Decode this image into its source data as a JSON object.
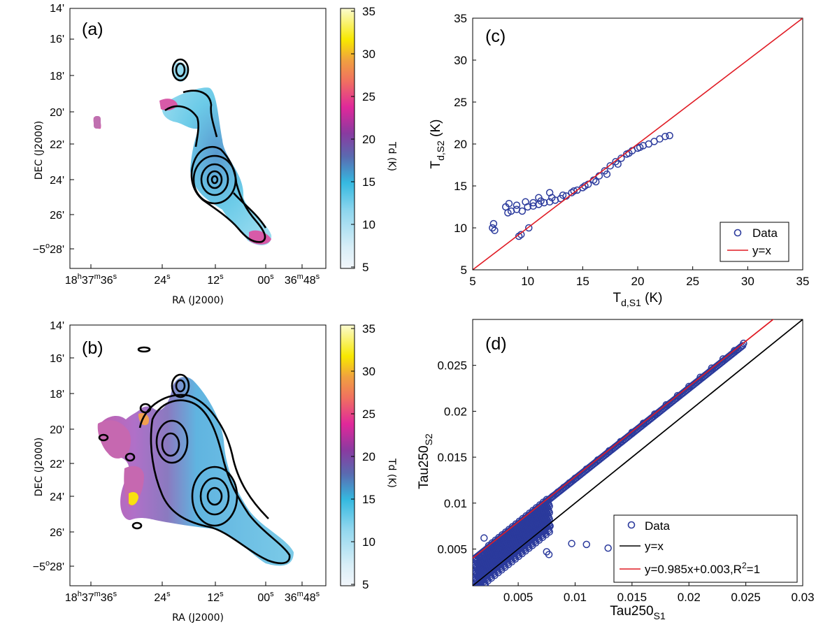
{
  "colors": {
    "data_marker": "#2b3a9c",
    "fit_line": "#e01b24",
    "identity_line": "#000000",
    "temp_scale": [
      "#f2f6fb",
      "#a6e0f0",
      "#35b9e0",
      "#5a6ab0",
      "#8a3aa0",
      "#e0289a",
      "#f0a040",
      "#f8e800",
      "#fbfbd0"
    ]
  },
  "panels": {
    "a": {
      "label": "(a)",
      "xlabel": "RA (J2000)",
      "ylabel": "DEC (J2000)",
      "xticks": [
        {
          "main": "18",
          "s1": "h",
          "mid": "37",
          "s2": "m",
          "tail": "36",
          "s3": "s"
        },
        {
          "main": "24",
          "s3": "s"
        },
        {
          "main": "12",
          "s3": "s"
        },
        {
          "main": "00",
          "s3": "s"
        },
        {
          "main": "36",
          "s2": "m",
          "tail": "48",
          "s3": "s"
        }
      ],
      "yticks": [
        "14'",
        "16'",
        "18'",
        "20'",
        "22'",
        "24'",
        "26'"
      ],
      "ylast": {
        "pre": "−5",
        "deg": "o",
        "post": "28'"
      },
      "colorbar_label": "Td (K)",
      "colorbar_ticks": [
        "5",
        "10",
        "15",
        "20",
        "25",
        "30",
        "35"
      ]
    },
    "b": {
      "label": "(b)",
      "xlabel": "RA (J2000)",
      "ylabel": "DEC (J2000)",
      "xticks": [
        {
          "main": "18",
          "s1": "h",
          "mid": "37",
          "s2": "m",
          "tail": "36",
          "s3": "s"
        },
        {
          "main": "24",
          "s3": "s"
        },
        {
          "main": "12",
          "s3": "s"
        },
        {
          "main": "00",
          "s3": "s"
        },
        {
          "main": "36",
          "s2": "m",
          "tail": "48",
          "s3": "s"
        }
      ],
      "yticks": [
        "14'",
        "16'",
        "18'",
        "20'",
        "22'",
        "24'",
        "26'"
      ],
      "ylast": {
        "pre": "−5",
        "deg": "o",
        "post": "28'"
      },
      "colorbar_label": "Td (K)",
      "colorbar_ticks": [
        "5",
        "10",
        "15",
        "20",
        "25",
        "30",
        "35"
      ]
    },
    "c": {
      "label": "(c)",
      "xlabel": {
        "base": "T",
        "sub": "d,S1",
        "unit": " (K)"
      },
      "ylabel": {
        "base": "T",
        "sub": "d,S2",
        "unit": " (K)"
      },
      "xticks": [
        "5",
        "10",
        "15",
        "20",
        "25",
        "30",
        "35"
      ],
      "yticks": [
        "5",
        "10",
        "15",
        "20",
        "25",
        "30",
        "35"
      ],
      "legend": [
        "Data",
        "y=x"
      ]
    },
    "d": {
      "label": "(d)",
      "xlabel": {
        "base": "Tau250",
        "sub": "S1"
      },
      "ylabel": {
        "base": "Tau250",
        "sub": "S2"
      },
      "xticks": [
        "0.005",
        "0.01",
        "0.015",
        "0.02",
        "0.025",
        "0.03"
      ],
      "yticks": [
        "0.005",
        "0.01",
        "0.015",
        "0.02",
        "0.025"
      ],
      "legend": [
        "Data",
        "y=x"
      ],
      "legend_fit": {
        "pre": "y=0.985x+0.003,R",
        "sup": "2",
        "post": "=1"
      }
    }
  },
  "chart_data": [
    {
      "type": "heatmap",
      "panel": "a",
      "title": "",
      "xlabel": "RA (J2000)",
      "ylabel": "DEC (J2000)",
      "colorbar": {
        "label": "Td (K)",
        "range": [
          5,
          35
        ]
      }
    },
    {
      "type": "heatmap",
      "panel": "b",
      "title": "",
      "xlabel": "RA (J2000)",
      "ylabel": "DEC (J2000)",
      "colorbar": {
        "label": "Td (K)",
        "range": [
          5,
          35
        ]
      }
    },
    {
      "type": "scatter",
      "panel": "c",
      "xlabel": "T_d,S1 (K)",
      "ylabel": "T_d,S2 (K)",
      "xlim": [
        5,
        35
      ],
      "ylim": [
        5,
        35
      ],
      "series": [
        {
          "name": "Data",
          "x": [
            6.8,
            6.9,
            7.0,
            9.2,
            9.4,
            10.1,
            8.0,
            8.2,
            8.5,
            9.0,
            9.5,
            10.0,
            10.5,
            11.0,
            11.5,
            12.0,
            12.5,
            13.0,
            13.5,
            14.0,
            14.5,
            15.0,
            15.5,
            16.0,
            16.5,
            17.0,
            17.5,
            18.0,
            18.5,
            19.0,
            19.5,
            20.0,
            20.5,
            21.0,
            21.5,
            22.0,
            22.5,
            22.9,
            8.3,
            9.0,
            9.8,
            10.5,
            11.2,
            12.2,
            13.2,
            14.2,
            15.2,
            16.2,
            17.2,
            18.2,
            19.2,
            20.2,
            11.0,
            12.0
          ],
          "y": [
            10.0,
            10.5,
            9.7,
            9.0,
            9.2,
            10.0,
            12.5,
            11.8,
            12.0,
            12.2,
            12.0,
            12.5,
            12.6,
            12.8,
            13.0,
            13.1,
            13.3,
            13.5,
            13.8,
            14.2,
            14.5,
            14.8,
            15.2,
            15.7,
            16.2,
            16.8,
            17.4,
            17.9,
            18.3,
            18.8,
            19.2,
            19.5,
            19.8,
            20.0,
            20.3,
            20.6,
            20.9,
            21.0,
            12.9,
            12.7,
            13.1,
            13.0,
            13.2,
            13.6,
            13.9,
            14.4,
            15.0,
            15.5,
            16.4,
            17.6,
            18.9,
            19.6,
            13.6,
            14.2
          ]
        },
        {
          "name": "y=x",
          "x": [
            5,
            35
          ],
          "y": [
            5,
            35
          ]
        }
      ]
    },
    {
      "type": "scatter",
      "panel": "d",
      "xlabel": "Tau250_S1",
      "ylabel": "Tau250_S2",
      "xlim": [
        0.001,
        0.03
      ],
      "ylim": [
        0.001,
        0.03
      ],
      "series": [
        {
          "name": "Data",
          "x": [
            0.0012,
            0.0015,
            0.002,
            0.0025,
            0.003,
            0.0035,
            0.004,
            0.0045,
            0.005,
            0.0055,
            0.006,
            0.0065,
            0.007,
            0.0075,
            0.008,
            0.0085,
            0.009,
            0.0095,
            0.01,
            0.011,
            0.012,
            0.013,
            0.014,
            0.015,
            0.016,
            0.017,
            0.018,
            0.019,
            0.02,
            0.021,
            0.022,
            0.023,
            0.024,
            0.0248,
            0.0097,
            0.011,
            0.0129,
            0.0075,
            0.0077,
            0.002,
            0.0035,
            0.005,
            0.006,
            0.0068,
            0.0072,
            0.0078
          ],
          "y": [
            0.0038,
            0.0042,
            0.0047,
            0.0052,
            0.0057,
            0.0062,
            0.0067,
            0.0072,
            0.0077,
            0.0082,
            0.0087,
            0.0092,
            0.0097,
            0.0102,
            0.0107,
            0.0112,
            0.0117,
            0.0122,
            0.0127,
            0.0137,
            0.0147,
            0.0157,
            0.0167,
            0.0177,
            0.0187,
            0.0197,
            0.0207,
            0.0217,
            0.0227,
            0.0237,
            0.0247,
            0.0257,
            0.0266,
            0.0274,
            0.0056,
            0.0055,
            0.0051,
            0.0047,
            0.0044,
            0.0062,
            0.0045,
            0.006,
            0.0068,
            0.0073,
            0.0069,
            0.0075
          ]
        },
        {
          "name": "y=x",
          "x": [
            0.001,
            0.03
          ],
          "y": [
            0.001,
            0.03
          ]
        },
        {
          "name": "y=0.985x+0.003,R^2=1",
          "x": [
            0.001,
            0.0275
          ],
          "y": [
            0.004,
            0.0301
          ]
        }
      ]
    }
  ]
}
